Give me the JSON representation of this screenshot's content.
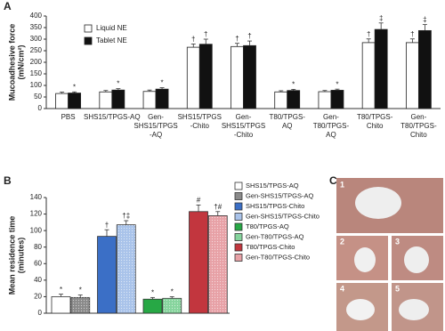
{
  "chart_data": [
    {
      "type": "bar",
      "panel": "A",
      "y_label": [
        "Mucoadhesive force",
        "(mN/cm²)"
      ],
      "categories": [
        [
          "PBS"
        ],
        [
          "SHS15/TPGS-AQ"
        ],
        [
          "Gen-",
          "SHS15/TPGS",
          "-AQ"
        ],
        [
          "SHS15/TPGS",
          "-Chito"
        ],
        [
          "Gen-",
          "SHS15/TPGS",
          "-Chito"
        ],
        [
          "T80/TPGS-",
          "AQ"
        ],
        [
          "Gen-",
          "T80/TPGS-",
          "AQ"
        ],
        [
          "T80/TPGS-",
          "Chito"
        ],
        [
          "Gen-",
          "T80/TPGS-",
          "Chito"
        ]
      ],
      "series": [
        {
          "name": "Liquid NE",
          "color": "#ffffff",
          "values": [
            65,
            72,
            74,
            265,
            268,
            72,
            73,
            285,
            285
          ],
          "errors": [
            6,
            6,
            6,
            14,
            14,
            5,
            5,
            16,
            16
          ],
          "markers": [
            null,
            null,
            null,
            "†",
            "†",
            null,
            null,
            "†",
            "†"
          ]
        },
        {
          "name": "Tablet NE",
          "color": "#111111",
          "values": [
            67,
            80,
            84,
            278,
            272,
            78,
            79,
            342,
            337
          ],
          "errors": [
            5,
            6,
            6,
            22,
            20,
            5,
            5,
            28,
            26
          ],
          "markers": [
            "*",
            "*",
            "*",
            "†",
            "†",
            "*",
            "*",
            "‡",
            "‡"
          ]
        }
      ],
      "ylim": [
        0,
        400
      ],
      "yticks": [
        0,
        50,
        100,
        150,
        200,
        250,
        300,
        350,
        400
      ]
    },
    {
      "type": "bar",
      "panel": "B",
      "y_label": [
        "Mean residence time",
        "(minutes)"
      ],
      "categories": [
        "SHS15/TPGS-AQ",
        "Gen-SHS15/TPGS-AQ",
        "SHS15/TPGS-Chito",
        "Gen-SHS15/TPGS-Chito",
        "T80/TPGS-AQ",
        "Gen-T80/TPGS-AQ",
        "T80/TPGS-Chito",
        "Gen-T80/TPGS-Chito"
      ],
      "colors": [
        "#ffffff",
        "#8a8a8a",
        "#3b6fc6",
        "#a9c3ea",
        "#27a845",
        "#86d49d",
        "#c2363e",
        "#e7a1a6"
      ],
      "values": [
        20,
        19,
        93,
        107,
        17,
        18,
        123,
        118
      ],
      "errors": [
        3,
        3,
        8,
        5,
        2,
        2,
        8,
        5
      ],
      "markers": [
        "*",
        "*",
        "†",
        "†‡",
        "*",
        "*",
        "#",
        "†#"
      ],
      "ylim": [
        0,
        140
      ],
      "yticks": [
        0,
        20,
        40,
        60,
        80,
        100,
        120,
        140
      ]
    }
  ],
  "panel_c": {
    "panel": "C",
    "labels": [
      "1",
      "2",
      "3",
      "4",
      "5"
    ]
  }
}
